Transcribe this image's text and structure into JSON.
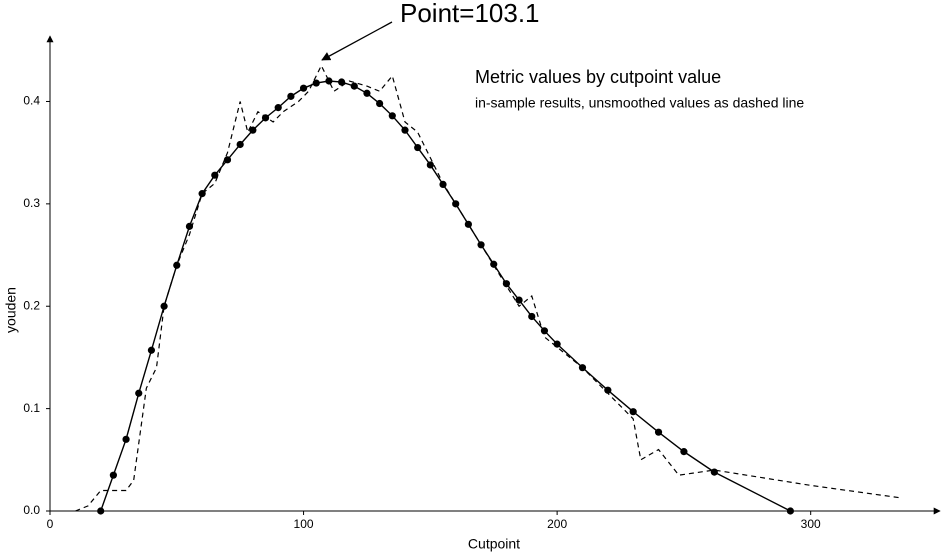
{
  "chart_data": {
    "type": "line",
    "title": "Metric values by cutpoint value",
    "subtitle": "in-sample results, unsmoothed values as dashed line",
    "annotation": "Point=103.1",
    "x_label": "Cutpoint",
    "y_label": "youden",
    "xlim": [
      0,
      351
    ],
    "ylim": [
      0,
      0.462
    ],
    "xticks": [
      0,
      100,
      200,
      300
    ],
    "yticks": [
      {
        "value": 0,
        "label": "0.0"
      },
      {
        "value": 0.1,
        "label": "0.1"
      },
      {
        "value": 0.2,
        "label": "0.2"
      },
      {
        "value": 0.3,
        "label": "0.3"
      },
      {
        "value": 0.4,
        "label": "0.4"
      }
    ],
    "grid": false,
    "series": [
      {
        "color": "#000000",
        "dash": false,
        "markers": true,
        "x": [
          20,
          25,
          30,
          35,
          40,
          45,
          50,
          55,
          60,
          65,
          70,
          75,
          80,
          85,
          90,
          95,
          100,
          105,
          110,
          115,
          120,
          125,
          130,
          135,
          140,
          145,
          150,
          155,
          160,
          165,
          170,
          175,
          180,
          185,
          190,
          195,
          200,
          210,
          220,
          230,
          240,
          250,
          262,
          292
        ],
        "values": [
          0.0,
          0.035,
          0.07,
          0.115,
          0.157,
          0.2,
          0.24,
          0.278,
          0.31,
          0.328,
          0.343,
          0.358,
          0.372,
          0.384,
          0.394,
          0.405,
          0.413,
          0.418,
          0.42,
          0.419,
          0.415,
          0.408,
          0.398,
          0.386,
          0.372,
          0.355,
          0.338,
          0.319,
          0.3,
          0.28,
          0.26,
          0.241,
          0.222,
          0.206,
          0.19,
          0.176,
          0.163,
          0.14,
          0.118,
          0.097,
          0.077,
          0.058,
          0.038,
          0.0
        ]
      },
      {
        "color": "#000000",
        "dash": true,
        "markers": false,
        "x": [
          10,
          15,
          20,
          25,
          30,
          33,
          38,
          42,
          45,
          50,
          55,
          60,
          65,
          70,
          75,
          78,
          82,
          88,
          92,
          98,
          102,
          107,
          112,
          118,
          125,
          130,
          135,
          140,
          145,
          150,
          155,
          160,
          165,
          170,
          175,
          180,
          185,
          190,
          195,
          200,
          210,
          220,
          230,
          233,
          240,
          248,
          262,
          300,
          335
        ],
        "values": [
          0.0,
          0.005,
          0.02,
          0.02,
          0.02,
          0.03,
          0.12,
          0.14,
          0.2,
          0.24,
          0.27,
          0.31,
          0.32,
          0.35,
          0.4,
          0.37,
          0.39,
          0.38,
          0.39,
          0.4,
          0.41,
          0.435,
          0.41,
          0.42,
          0.415,
          0.41,
          0.425,
          0.38,
          0.37,
          0.345,
          0.32,
          0.3,
          0.28,
          0.26,
          0.24,
          0.22,
          0.2,
          0.21,
          0.17,
          0.16,
          0.14,
          0.115,
          0.09,
          0.05,
          0.06,
          0.035,
          0.04,
          0.025,
          0.013
        ]
      }
    ]
  }
}
